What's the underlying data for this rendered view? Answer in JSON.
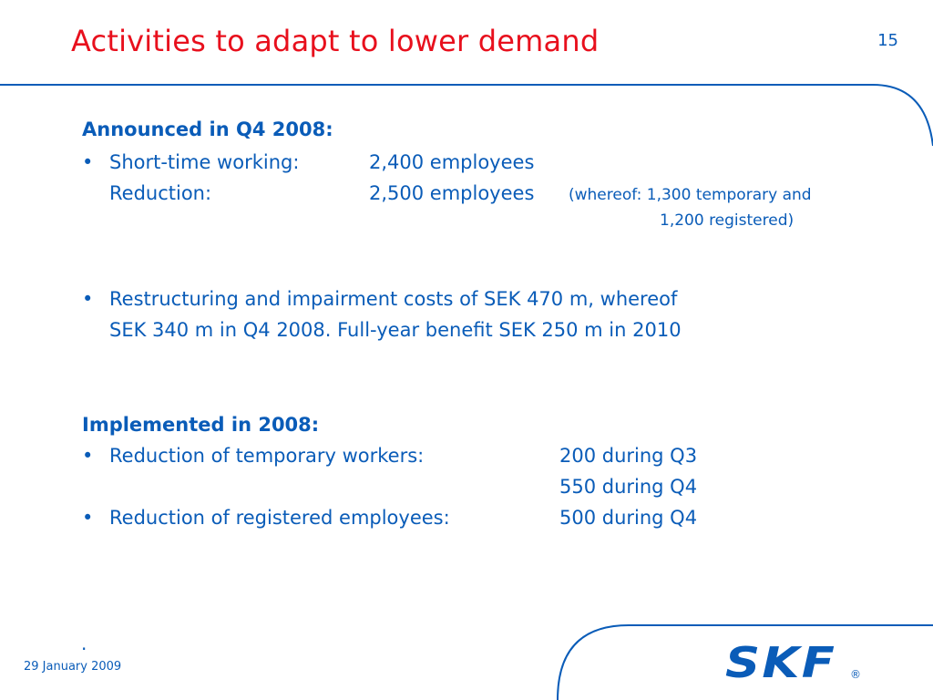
{
  "header": {
    "title": "Activities to adapt to lower demand",
    "page_number": "15"
  },
  "section1": {
    "heading": "Announced in Q4 2008:",
    "bullet1": {
      "row1_label": "Short-time working:",
      "row1_value": "2,400 employees",
      "row2_label": "Reduction:",
      "row2_value": "2,500 employees",
      "row2_note_line1": "(whereof: 1,300 temporary and",
      "row2_note_line2": "1,200 registered)"
    },
    "bullet2": {
      "line1": "Restructuring and impairment costs of SEK 470 m, whereof",
      "line2": "SEK 340 m in Q4 2008. Full-year benefit SEK 250 m in 2010"
    }
  },
  "section2": {
    "heading": "Implemented in 2008:",
    "bullet1": {
      "label": "Reduction of temporary workers:",
      "value1": "200 during Q3",
      "value2": "550 during Q4"
    },
    "bullet2": {
      "label": "Reduction of registered employees:",
      "value": "500 during Q4"
    }
  },
  "footer": {
    "dot": ".",
    "date": "29 January 2009",
    "logo_text": "SKF",
    "logo_mark": "®"
  },
  "colors": {
    "title_red": "#e8101d",
    "brand_blue": "#0a5cb8"
  },
  "bullet_glyph": "•"
}
